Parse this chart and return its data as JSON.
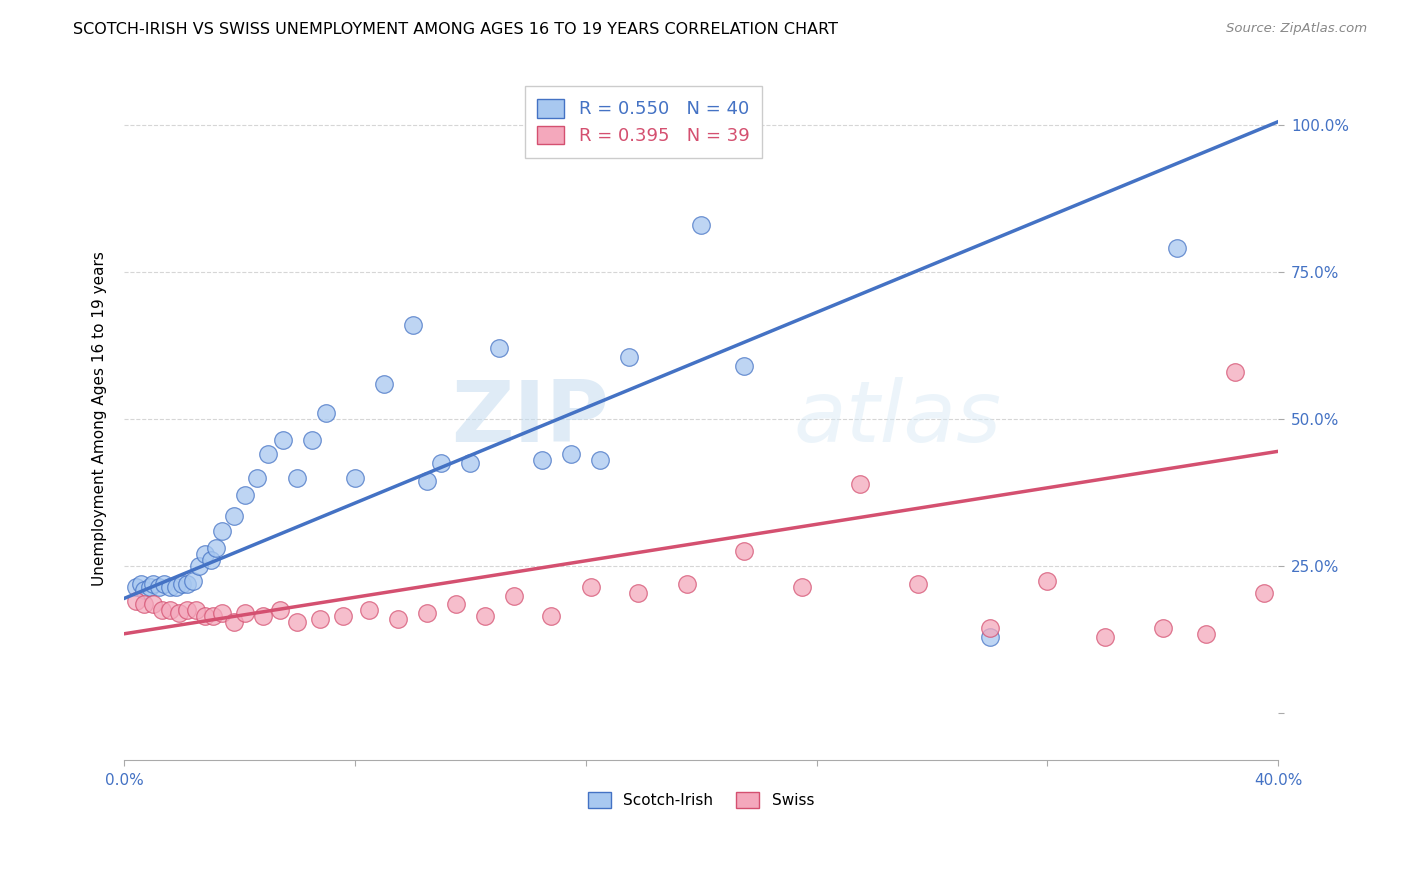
{
  "title": "SCOTCH-IRISH VS SWISS UNEMPLOYMENT AMONG AGES 16 TO 19 YEARS CORRELATION CHART",
  "source": "Source: ZipAtlas.com",
  "ylabel": "Unemployment Among Ages 16 to 19 years",
  "yticks": [
    0.0,
    0.25,
    0.5,
    0.75,
    1.0
  ],
  "ytick_labels": [
    "",
    "25.0%",
    "50.0%",
    "75.0%",
    "100.0%"
  ],
  "xtick_positions": [
    0.0,
    0.08,
    0.16,
    0.24,
    0.32,
    0.4
  ],
  "xtick_labels": [
    "0.0%",
    "",
    "",
    "",
    "",
    "40.0%"
  ],
  "xmin": 0.0,
  "xmax": 0.4,
  "ymin": -0.08,
  "ymax": 1.08,
  "scotch_irish_r_label": "R = 0.550   N = 40",
  "swiss_r_label": "R = 0.395   N = 39",
  "scotch_irish_fill": "#A8C8F0",
  "swiss_fill": "#F4A8BC",
  "scotch_irish_edge": "#4472C4",
  "swiss_edge": "#D45070",
  "scotch_irish_line": "#4472C4",
  "swiss_line": "#D45070",
  "legend_scotch_label": "Scotch-Irish",
  "legend_swiss_label": "Swiss",
  "watermark_zip": "ZIP",
  "watermark_atlas": "atlas",
  "scotch_x": [
    0.004,
    0.006,
    0.007,
    0.009,
    0.01,
    0.012,
    0.014,
    0.016,
    0.018,
    0.02,
    0.022,
    0.024,
    0.026,
    0.028,
    0.03,
    0.032,
    0.034,
    0.038,
    0.042,
    0.046,
    0.05,
    0.055,
    0.06,
    0.065,
    0.07,
    0.08,
    0.09,
    0.1,
    0.105,
    0.11,
    0.12,
    0.13,
    0.145,
    0.155,
    0.165,
    0.175,
    0.2,
    0.215,
    0.3,
    0.365
  ],
  "scotch_y": [
    0.215,
    0.22,
    0.21,
    0.215,
    0.22,
    0.215,
    0.22,
    0.215,
    0.215,
    0.22,
    0.22,
    0.225,
    0.25,
    0.27,
    0.26,
    0.28,
    0.31,
    0.335,
    0.37,
    0.4,
    0.44,
    0.465,
    0.4,
    0.465,
    0.51,
    0.4,
    0.56,
    0.66,
    0.395,
    0.425,
    0.425,
    0.62,
    0.43,
    0.44,
    0.43,
    0.605,
    0.83,
    0.59,
    0.13,
    0.79
  ],
  "swiss_x": [
    0.004,
    0.007,
    0.01,
    0.013,
    0.016,
    0.019,
    0.022,
    0.025,
    0.028,
    0.031,
    0.034,
    0.038,
    0.042,
    0.048,
    0.054,
    0.06,
    0.068,
    0.076,
    0.085,
    0.095,
    0.105,
    0.115,
    0.125,
    0.135,
    0.148,
    0.162,
    0.178,
    0.195,
    0.215,
    0.235,
    0.255,
    0.275,
    0.3,
    0.32,
    0.34,
    0.36,
    0.375,
    0.385,
    0.395
  ],
  "swiss_y": [
    0.19,
    0.185,
    0.185,
    0.175,
    0.175,
    0.17,
    0.175,
    0.175,
    0.165,
    0.165,
    0.17,
    0.155,
    0.17,
    0.165,
    0.175,
    0.155,
    0.16,
    0.165,
    0.175,
    0.16,
    0.17,
    0.185,
    0.165,
    0.2,
    0.165,
    0.215,
    0.205,
    0.22,
    0.275,
    0.215,
    0.39,
    0.22,
    0.145,
    0.225,
    0.13,
    0.145,
    0.135,
    0.58,
    0.205
  ],
  "blue_line_x0": 0.0,
  "blue_line_y0": 0.195,
  "blue_line_x1": 0.4,
  "blue_line_y1": 1.005,
  "pink_line_x0": 0.0,
  "pink_line_y0": 0.135,
  "pink_line_x1": 0.4,
  "pink_line_y1": 0.445
}
